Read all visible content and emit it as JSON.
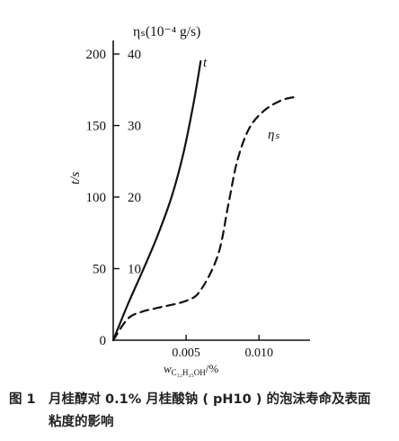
{
  "chart_data": {
    "type": "line",
    "x": {
      "label_main": "w",
      "label_sub": "C₁₂H₂₅OH",
      "label_suffix": "/%",
      "ticks": [
        0.005,
        0.01
      ],
      "tick_labels": [
        "0.005",
        "0.010"
      ],
      "range": [
        0,
        0.0135
      ]
    },
    "y_left": {
      "label": "t/s",
      "ticks": [
        0,
        50,
        100,
        150,
        200
      ],
      "tick_labels": [
        "0",
        "50",
        "100",
        "150",
        "200"
      ],
      "range": [
        0,
        200
      ]
    },
    "y_right": {
      "label": "ηₛ(10⁻⁴ g/s)",
      "ticks": [
        10,
        20,
        30,
        40
      ],
      "tick_labels": [
        "10",
        "20",
        "30",
        "40"
      ],
      "range": [
        0,
        40
      ]
    },
    "series": [
      {
        "name": "t",
        "axis": "left",
        "style": "solid",
        "points": [
          [
            0,
            0
          ],
          [
            0.001,
            25
          ],
          [
            0.002,
            48
          ],
          [
            0.003,
            72
          ],
          [
            0.004,
            100
          ],
          [
            0.0048,
            130
          ],
          [
            0.0055,
            165
          ],
          [
            0.006,
            195
          ]
        ]
      },
      {
        "name": "ηₛ",
        "axis": "right",
        "style": "dashed",
        "points": [
          [
            0,
            0
          ],
          [
            0.001,
            3
          ],
          [
            0.002,
            4
          ],
          [
            0.003,
            4.5
          ],
          [
            0.005,
            5.5
          ],
          [
            0.006,
            7
          ],
          [
            0.0072,
            12
          ],
          [
            0.0079,
            19
          ],
          [
            0.0085,
            25
          ],
          [
            0.0093,
            29.5
          ],
          [
            0.0103,
            32
          ],
          [
            0.0115,
            33.5
          ],
          [
            0.0125,
            34
          ]
        ]
      }
    ],
    "series_label_positions": {
      "t": "end",
      "ηₛ": "right-of-curve"
    },
    "grid": false,
    "legend": "none"
  },
  "caption": {
    "figure_number": "图 1",
    "line1": "月桂醇对 0.1% 月桂酸钠 ( pH10 ) 的泡沫寿命及表面",
    "line2": "粘度的影响"
  }
}
